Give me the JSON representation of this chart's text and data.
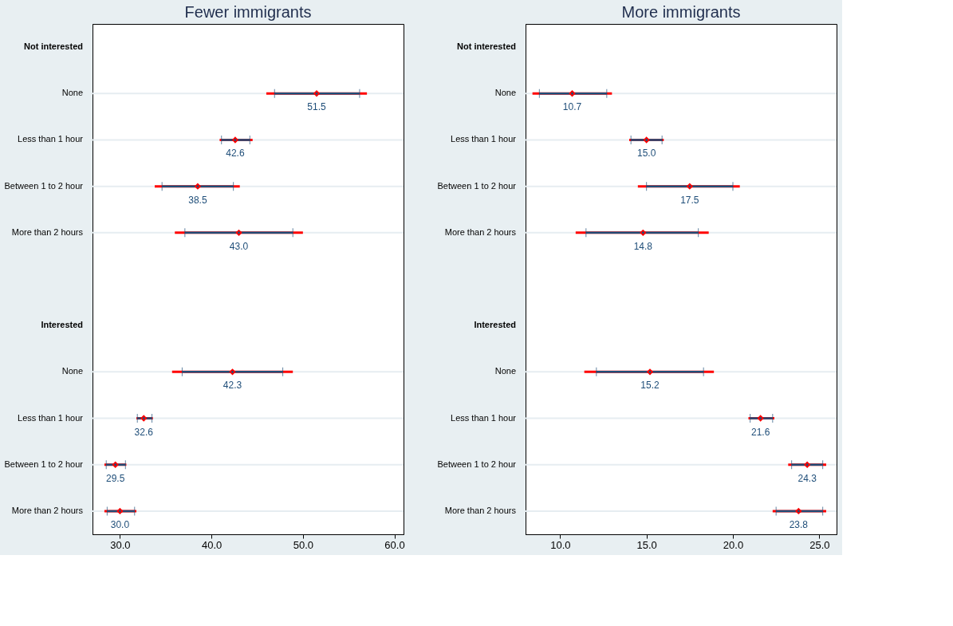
{
  "chart_data": [
    {
      "type": "scatter",
      "title": "Fewer immigrants",
      "orientation": "horizontal",
      "categories": [
        "Not interested",
        "None",
        "Less than 1 hour",
        "Between 1 to 2 hour",
        "More than 2 hours",
        null,
        "Interested",
        "None",
        "Less than 1 hour",
        "Between 1 to 2 hour",
        "More than 2 hours"
      ],
      "xlim": [
        27,
        61
      ],
      "xticks": [
        {
          "value": 30,
          "label": "30.0"
        },
        {
          "value": 40,
          "label": "40.0"
        },
        {
          "value": 50,
          "label": "50.0"
        },
        {
          "value": 60,
          "label": "60.0"
        }
      ],
      "grid": "y",
      "series": [
        {
          "color": "#ff0000",
          "marker": "diamond",
          "values": [
            null,
            51.5,
            42.6,
            38.5,
            43.0,
            null,
            null,
            42.3,
            32.6,
            29.5,
            30.0
          ],
          "value_labels": [
            null,
            "51.5",
            "42.6",
            "38.5",
            "43.0",
            null,
            null,
            "42.3",
            "32.6",
            "29.5",
            "30.0"
          ],
          "errors": [
            null,
            [
              46.0,
              57.0
            ],
            [
              40.9,
              44.5
            ],
            [
              33.8,
              43.1
            ],
            [
              36.0,
              50.0
            ],
            null,
            null,
            [
              35.7,
              48.9
            ],
            [
              31.8,
              33.6
            ],
            [
              28.3,
              30.7
            ],
            [
              28.3,
              31.8
            ]
          ]
        },
        {
          "color": "#1f4e79",
          "marker": "diamond",
          "values": [
            null,
            51.5,
            42.6,
            38.5,
            43.0,
            null,
            null,
            42.3,
            32.6,
            29.5,
            30.0
          ],
          "errors": [
            null,
            [
              46.9,
              56.2
            ],
            [
              41.1,
              44.2
            ],
            [
              34.6,
              42.4
            ],
            [
              37.1,
              48.9
            ],
            null,
            null,
            [
              36.8,
              47.8
            ],
            [
              31.9,
              33.5
            ],
            [
              28.5,
              30.6
            ],
            [
              28.6,
              31.6
            ]
          ]
        }
      ]
    },
    {
      "type": "scatter",
      "title": "More immigrants",
      "orientation": "horizontal",
      "categories": [
        "Not interested",
        "None",
        "Less than 1 hour",
        "Between 1 to 2 hour",
        "More than 2 hours",
        null,
        "Interested",
        "None",
        "Less than 1 hour",
        "Between 1 to 2 hour",
        "More than 2 hours"
      ],
      "xlim": [
        8,
        26
      ],
      "xticks": [
        {
          "value": 10,
          "label": "10.0"
        },
        {
          "value": 15,
          "label": "15.0"
        },
        {
          "value": 20,
          "label": "20.0"
        },
        {
          "value": 25,
          "label": "25.0"
        }
      ],
      "grid": "y",
      "series": [
        {
          "color": "#ff0000",
          "marker": "diamond",
          "values": [
            null,
            10.7,
            15.0,
            17.5,
            14.8,
            null,
            null,
            15.2,
            21.6,
            24.3,
            23.8
          ],
          "value_labels": [
            null,
            "10.7",
            "15.0",
            "17.5",
            "14.8",
            null,
            null,
            "15.2",
            "21.6",
            "24.3",
            "23.8"
          ],
          "errors": [
            null,
            [
              8.4,
              13.0
            ],
            [
              14.0,
              16.0
            ],
            [
              14.5,
              20.4
            ],
            [
              10.9,
              18.6
            ],
            null,
            null,
            [
              11.4,
              18.9
            ],
            [
              20.9,
              22.4
            ],
            [
              23.2,
              25.4
            ],
            [
              22.3,
              25.4
            ]
          ]
        },
        {
          "color": "#1f4e79",
          "marker": "diamond",
          "values": [
            null,
            10.7,
            15.0,
            17.5,
            14.8,
            null,
            null,
            15.2,
            21.6,
            24.3,
            23.8
          ],
          "errors": [
            null,
            [
              8.8,
              12.7
            ],
            [
              14.1,
              15.9
            ],
            [
              15.0,
              20.0
            ],
            [
              11.5,
              18.0
            ],
            null,
            null,
            [
              12.1,
              18.3
            ],
            [
              21.0,
              22.3
            ],
            [
              23.4,
              25.2
            ],
            [
              22.5,
              25.2
            ]
          ]
        }
      ]
    }
  ]
}
